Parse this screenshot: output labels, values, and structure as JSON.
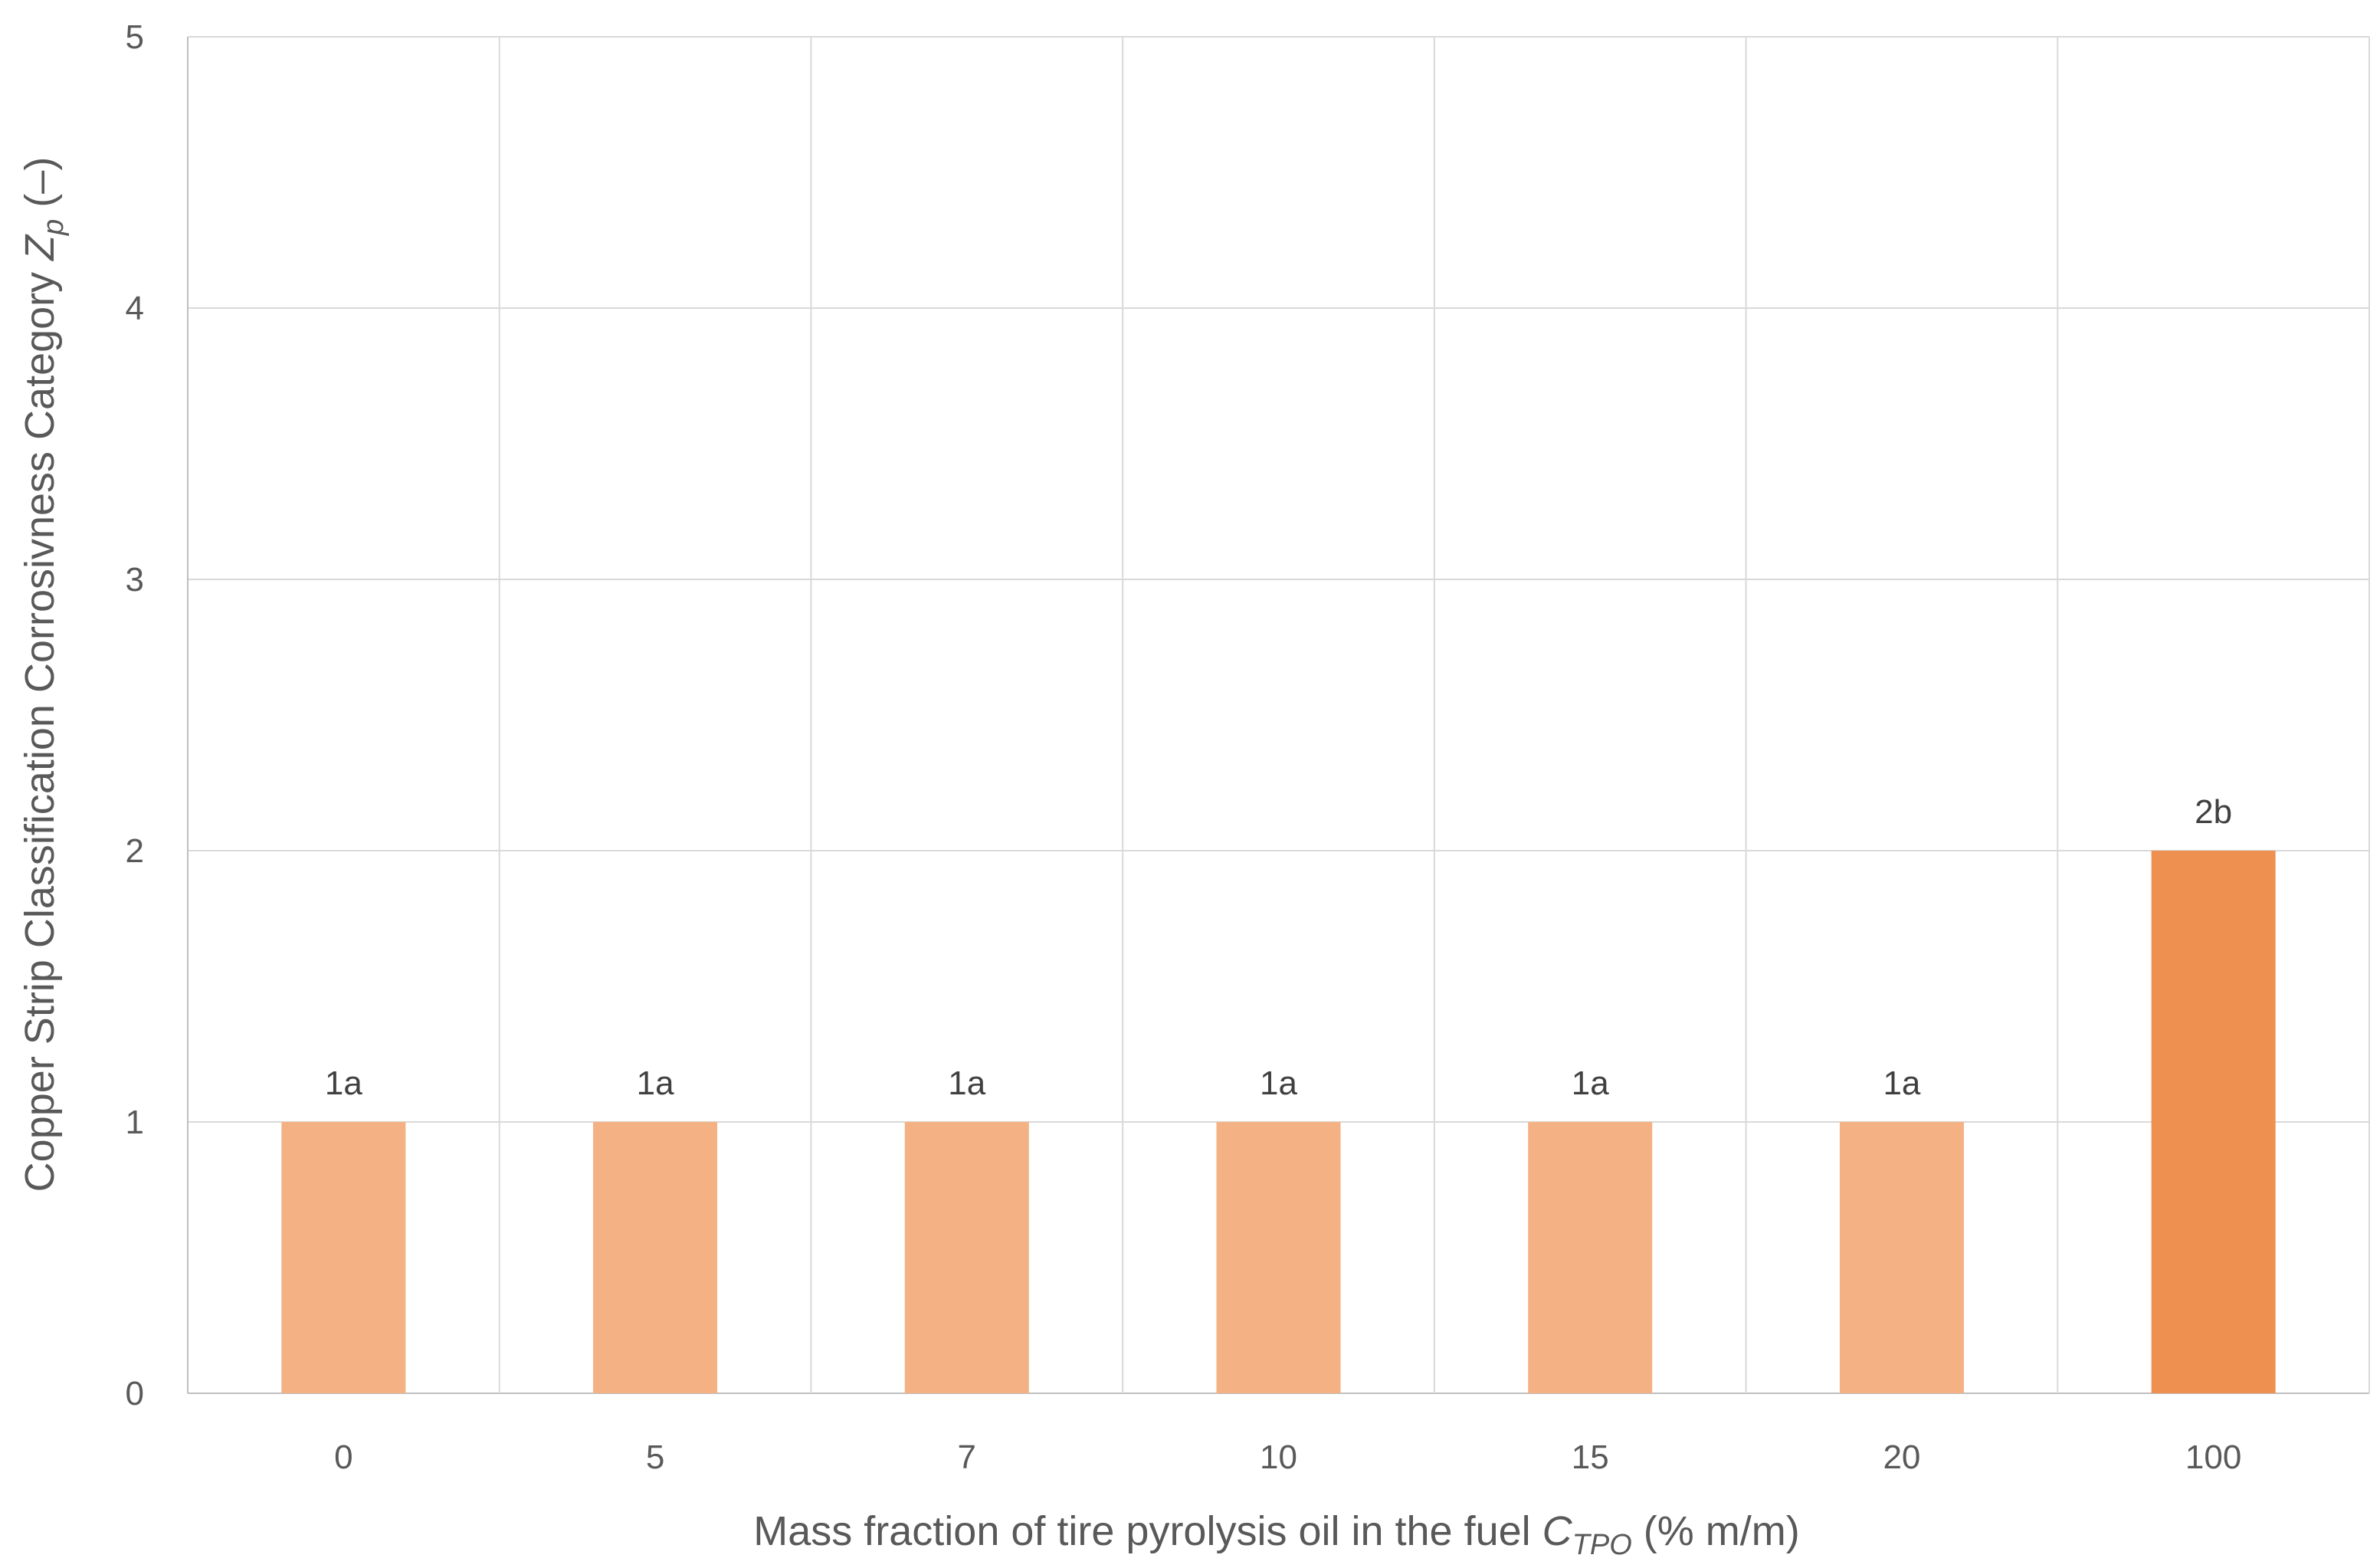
{
  "chart_data": {
    "type": "bar",
    "categories": [
      "0",
      "5",
      "7",
      "10",
      "15",
      "20",
      "100"
    ],
    "values": [
      1,
      1,
      1,
      1,
      1,
      1,
      2
    ],
    "data_labels": [
      "1a",
      "1a",
      "1a",
      "1a",
      "1a",
      "1a",
      "2b"
    ],
    "bar_colors": [
      "#F4B183",
      "#F4B183",
      "#F4B183",
      "#F4B183",
      "#F4B183",
      "#F4B183",
      "#EE904F"
    ],
    "ylim": [
      0,
      5
    ],
    "yticks": [
      "0",
      "1",
      "2",
      "3",
      "4",
      "5"
    ],
    "grid": true,
    "legend": "none",
    "xlabel": {
      "text": "Mass fraction of tire pyrolysis oil in the fuel ",
      "symbol": "C",
      "subscript": "TPO",
      "suffix": " (% m/m)"
    },
    "ylabel": {
      "text": "Copper Strip Classification Corrosivness Category ",
      "symbol": "Z",
      "subscript": "p",
      "suffix": " (–)"
    }
  }
}
